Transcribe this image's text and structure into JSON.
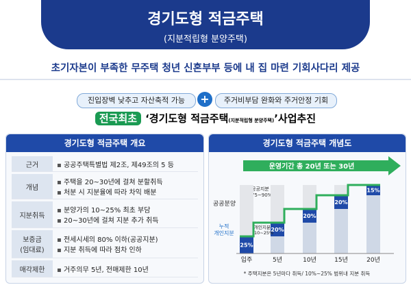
{
  "header": {
    "title": "경기도형 적금주택",
    "subtitle": "(지분적립형 분양주택)"
  },
  "tagline": "초기자본이 부족한 무주택 청년 신혼부부 등에 내 집 마련 기회사다리 제공",
  "benefits": [
    "진입장벽 낮추고 자산축적 가능",
    "주거비부담 완화와 주거안정 기회"
  ],
  "headline": {
    "badge": "전국최초",
    "open": "‘경기도형 적금주택",
    "note": "(지분적립형 분양주택)",
    "close": "’사업추진"
  },
  "overview": {
    "title": "경기도형 적금주택 개요",
    "rows": [
      {
        "label": [
          "근거"
        ],
        "items": [
          "공공주택특별법 제2조, 제49조의 5 등"
        ]
      },
      {
        "label": [
          "개념"
        ],
        "items": [
          "주택을 20~30년에 걸쳐 분할취득",
          "처분 시 지분율에 따라 차익 배분"
        ]
      },
      {
        "label": [
          "지분취득"
        ],
        "items": [
          "분양가의 10~25% 최초 부담",
          "20~30년에 걸쳐 지분 추가 취득"
        ]
      },
      {
        "label": [
          "보증금",
          "(임대료)"
        ],
        "items": [
          "전세시세의 80% 이하(공공지분)",
          "지분 취득에 따라 점차 인하"
        ]
      },
      {
        "label": [
          "매각제한"
        ],
        "items": [
          "거주의무 5년, 전매제한 10년"
        ]
      }
    ]
  },
  "concept": {
    "title": "경기도형 적금주택 개념도",
    "period": "운영기간 총 20년 또는 30년",
    "public_label": "공공분양",
    "public_share": [
      "공공지분",
      "75~90%"
    ],
    "cumulative_label": [
      "누적",
      "개인지분"
    ],
    "personal_share": [
      "개인지분",
      "10~25%"
    ],
    "chart_data": {
      "type": "bar",
      "categories": [
        "입주",
        "5년",
        "10년",
        "15년",
        "20년"
      ],
      "values": [
        25,
        20,
        20,
        20,
        15
      ],
      "value_labels": [
        "25%",
        "20%",
        "20%",
        "20%",
        "15%"
      ],
      "color": "#1f4aa8"
    },
    "footnote": "* 주택지분은 5년마다 취득/ 10%~25% 범위내 지분 취득"
  }
}
